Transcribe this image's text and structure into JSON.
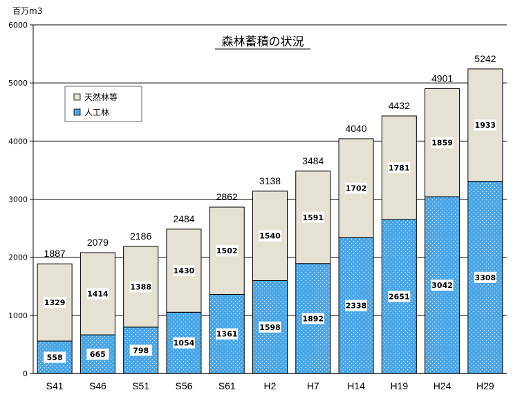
{
  "chart_data": {
    "type": "bar",
    "stacked": true,
    "title": "森林蓄積の状況",
    "unit_label": "百万m3",
    "categories": [
      "S41",
      "S46",
      "S51",
      "S56",
      "S61",
      "H2",
      "H7",
      "H14",
      "H19",
      "H24",
      "H29"
    ],
    "series": [
      {
        "name": "人工林",
        "values": [
          558,
          665,
          798,
          1054,
          1361,
          1598,
          1892,
          2338,
          2651,
          3042,
          3308
        ],
        "color": "#4aa6e6"
      },
      {
        "name": "天然林等",
        "values": [
          1329,
          1414,
          1388,
          1430,
          1502,
          1540,
          1591,
          1702,
          1781,
          1859,
          1933
        ],
        "color": "#e5e1d3"
      }
    ],
    "totals": [
      1887,
      2079,
      2186,
      2484,
      2862,
      3138,
      3484,
      4040,
      4432,
      4901,
      5242
    ],
    "ylim": [
      0,
      6000
    ],
    "yticks": [
      0,
      1000,
      2000,
      3000,
      4000,
      5000,
      6000
    ],
    "grid": true,
    "legend_position": "top-left"
  }
}
